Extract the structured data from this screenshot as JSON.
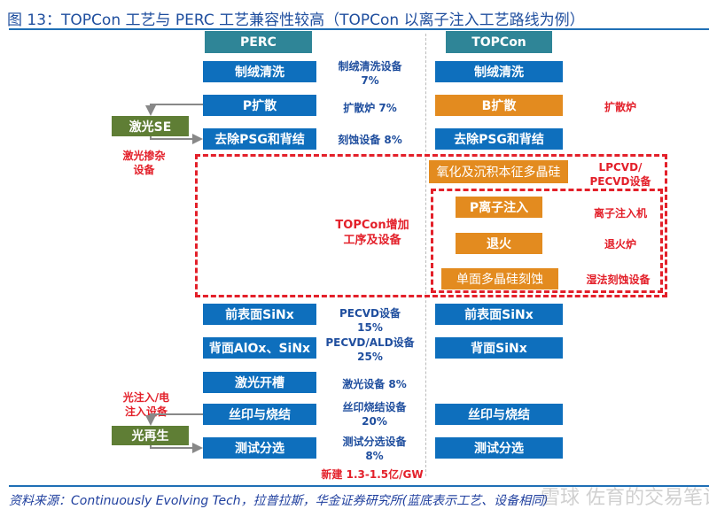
{
  "title": "图 13：TOPCon 工艺与 PERC 工艺兼容性较高（TOPCon 以离子注入工艺路线为例）",
  "colors": {
    "header": "#2f8597",
    "shared_step": "#0e6fbd",
    "topcon_step": "#e38b1f",
    "optional_step": "#5f7e35",
    "highlight": "#e3202a"
  },
  "perc": {
    "header": "PERC",
    "steps": [
      "制绒清洗",
      "P扩散",
      "去除PSG和背结",
      "前表面SiNx",
      "背面AlOx、SiNx",
      "激光开槽",
      "丝印与烧结",
      "测试分选"
    ]
  },
  "topcon": {
    "header": "TOPCon",
    "steps": [
      "制绒清洗",
      "B扩散",
      "去除PSG和背结",
      "氧化及沉积本征多晶硅",
      "P离子注入",
      "退火",
      "单面多晶硅刻蚀",
      "前表面SiNx",
      "背面SiNx",
      "丝印与烧结",
      "测试分选"
    ]
  },
  "equipment": [
    "制绒清洗设备",
    "7%",
    "扩散炉 7%",
    "刻蚀设备 8%",
    "PECVD设备",
    "15%",
    "PECVD/ALD设备",
    "25%",
    "激光设备 8%",
    "丝印烧结设备",
    "20%",
    "测试分选设备",
    "8%"
  ],
  "topcon_equipment": [
    "扩散炉",
    "LPCVD/",
    "PECVD设备",
    "离子注入机",
    "退火炉",
    "湿法刻蚀设备"
  ],
  "optional": {
    "laser_se": "激光SE",
    "laser_se_equip": [
      "激光掺杂",
      "设备"
    ],
    "regen": "光再生",
    "regen_equip": [
      "光注入/电",
      "注入设备"
    ]
  },
  "added_label": [
    "TOPCon增加",
    "工序及设备"
  ],
  "total": "新建 1.3-1.5亿/GW",
  "source": "资料来源：Continuously Evolving Tech，拉普拉斯，华金证券研究所(蓝底表示工艺、设备相同)",
  "watermark": "雪球 佐育的交易笔记"
}
